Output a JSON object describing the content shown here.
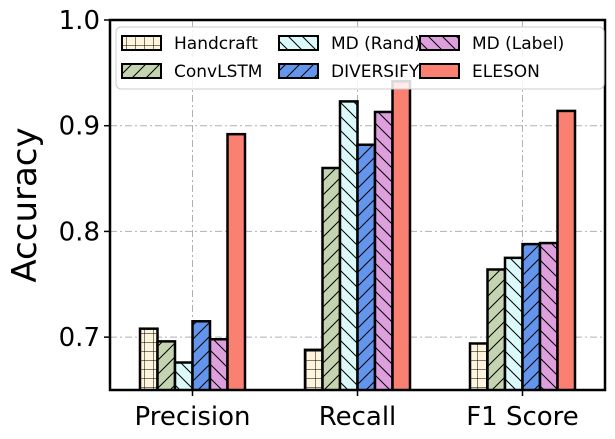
{
  "chart_data": {
    "type": "bar",
    "title": "",
    "xlabel": "",
    "ylabel": "Accuracy",
    "ylim": [
      0.65,
      1.0
    ],
    "yticks": [
      0.7,
      0.8,
      0.9,
      1.0
    ],
    "ytick_labels": [
      "0.7",
      "0.8",
      "0.9",
      "1.0"
    ],
    "grid": true,
    "legend_position": "top",
    "categories": [
      "Precision",
      "Recall",
      "F1 Score"
    ],
    "series": [
      {
        "name": "Handcraft",
        "values": [
          0.708,
          0.688,
          0.694
        ],
        "color": "#fff5dc",
        "hatch": "grid"
      },
      {
        "name": "ConvLSTM",
        "values": [
          0.696,
          0.86,
          0.764
        ],
        "color": "#c4d4b0",
        "hatch": "slash"
      },
      {
        "name": "MD (Rand)",
        "values": [
          0.676,
          0.923,
          0.775
        ],
        "color": "#dcfafa",
        "hatch": "backslash"
      },
      {
        "name": "DIVERSIFY",
        "values": [
          0.715,
          0.882,
          0.788
        ],
        "color": "#6495ed",
        "hatch": "slash"
      },
      {
        "name": "MD (Label)",
        "values": [
          0.698,
          0.913,
          0.789
        ],
        "color": "#dda0dd",
        "hatch": "backslash"
      },
      {
        "name": "ELESON",
        "values": [
          0.892,
          0.942,
          0.914
        ],
        "color": "#fa8072",
        "hatch": "none"
      }
    ]
  }
}
